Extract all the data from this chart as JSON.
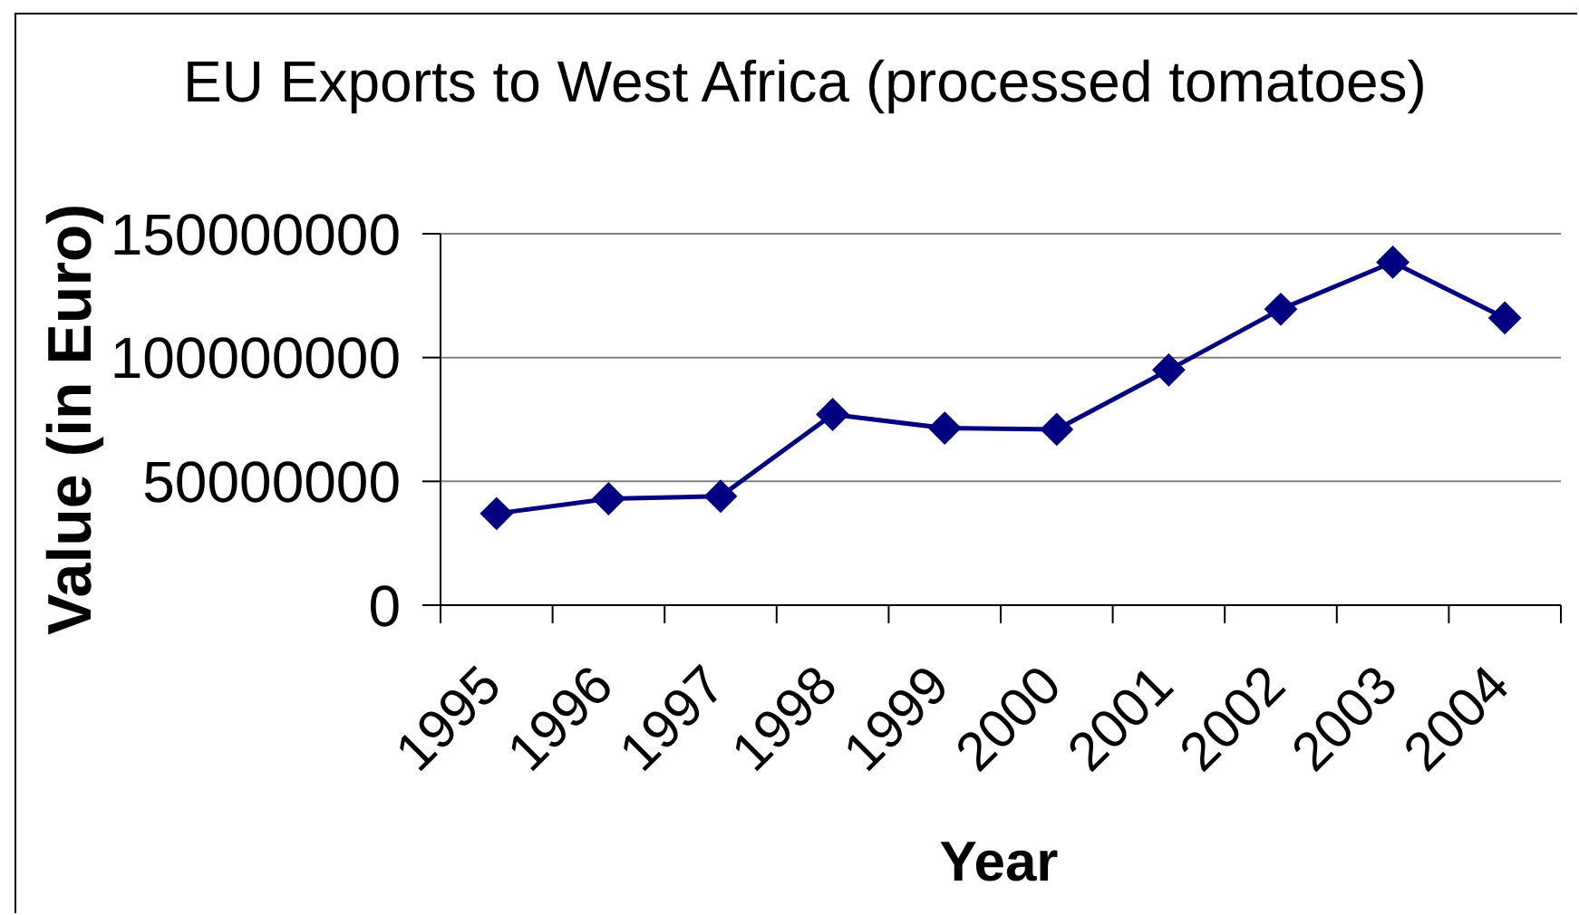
{
  "chart_data": {
    "type": "line",
    "title": "EU Exports to West Africa (processed tomatoes)",
    "xlabel": "Year",
    "ylabel": "Value (in Euro)",
    "categories": [
      "1995",
      "1996",
      "1997",
      "1998",
      "1999",
      "2000",
      "2001",
      "2002",
      "2003",
      "2004"
    ],
    "series": [
      {
        "color": "#000080",
        "values": [
          37000000,
          43000000,
          44000000,
          77000000,
          71500000,
          71000000,
          95000000,
          119500000,
          138500000,
          116000000
        ]
      }
    ],
    "ylim": [
      0,
      150000000
    ],
    "yticks": [
      0,
      50000000,
      100000000,
      150000000
    ],
    "grid": "y",
    "marker": "diamond",
    "line_style": "solid"
  }
}
